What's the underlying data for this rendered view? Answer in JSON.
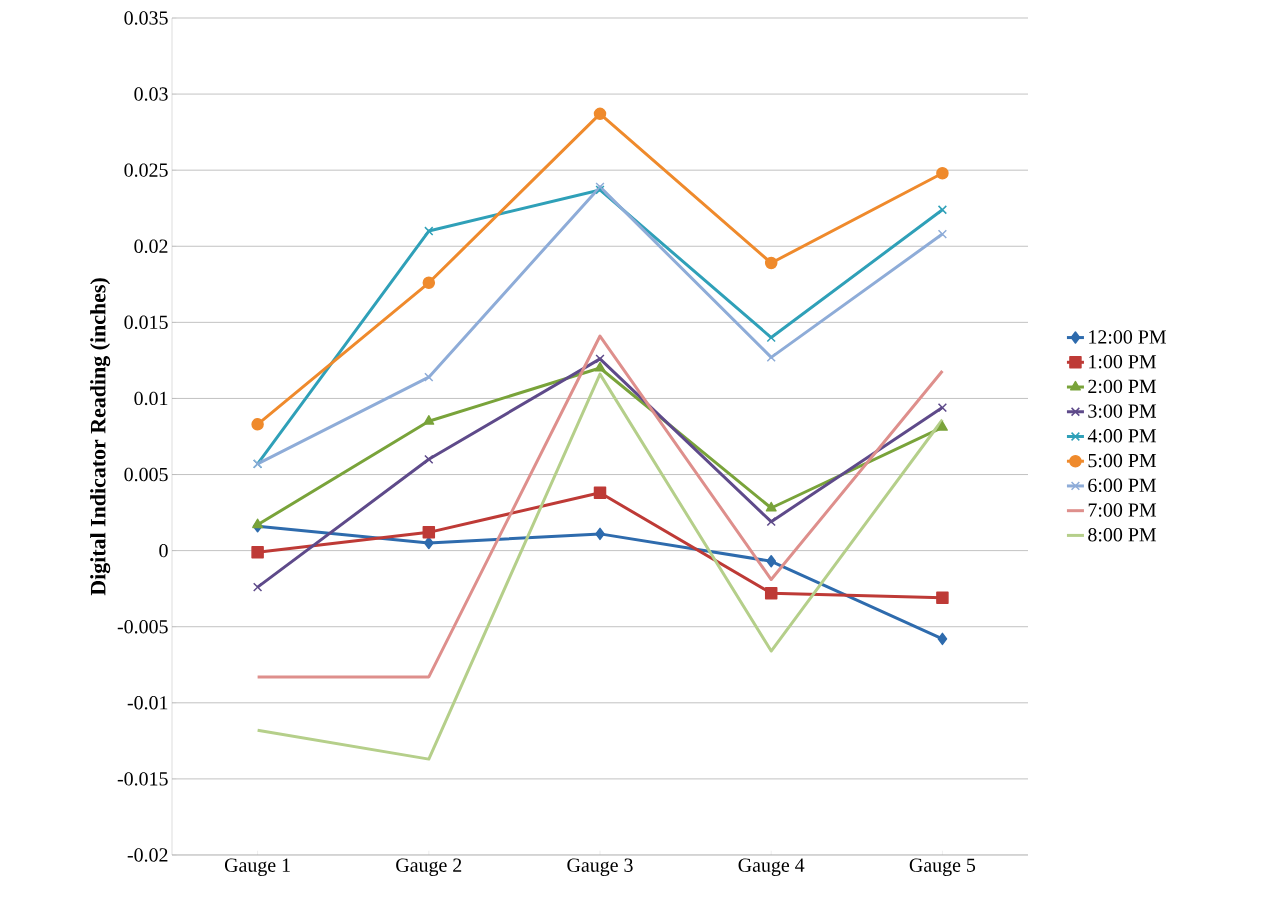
{
  "chart_data": {
    "type": "line",
    "ylabel": "Digital Indicator Reading (inches)",
    "categories": [
      "Gauge 1",
      "Gauge 2",
      "Gauge 3",
      "Gauge 4",
      "Gauge 5"
    ],
    "series": [
      {
        "name": "12:00 PM",
        "color": "#2e6bad",
        "marker": "diamond",
        "values": [
          0.0016,
          0.0005,
          0.0011,
          -0.0007,
          -0.0058
        ]
      },
      {
        "name": "1:00 PM",
        "color": "#be3a36",
        "marker": "square",
        "values": [
          -0.0001,
          0.0012,
          0.0038,
          -0.0028,
          -0.0031
        ]
      },
      {
        "name": "2:00 PM",
        "color": "#79a33a",
        "marker": "triangle",
        "values": [
          0.0017,
          0.0085,
          0.012,
          0.0028,
          0.0081
        ]
      },
      {
        "name": "3:00 PM",
        "color": "#5e4a8a",
        "marker": "cross",
        "values": [
          -0.0024,
          0.006,
          0.0126,
          0.0019,
          0.0094
        ]
      },
      {
        "name": "4:00 PM",
        "color": "#2fa0b8",
        "marker": "cross",
        "values": [
          0.0057,
          0.021,
          0.0237,
          0.014,
          0.0224
        ]
      },
      {
        "name": "5:00 PM",
        "color": "#ef8a2c",
        "marker": "circle",
        "values": [
          0.0083,
          0.0176,
          0.0287,
          0.0189,
          0.0248
        ]
      },
      {
        "name": "6:00 PM",
        "color": "#8eacd8",
        "marker": "cross",
        "values": [
          0.0057,
          0.0114,
          0.0239,
          0.0127,
          0.0208
        ]
      },
      {
        "name": "7:00 PM",
        "color": "#de8f8c",
        "marker": "none",
        "values": [
          -0.0083,
          -0.0083,
          0.0141,
          -0.0019,
          0.0118
        ]
      },
      {
        "name": "8:00 PM",
        "color": "#b5cf8a",
        "marker": "none",
        "values": [
          -0.0118,
          -0.0137,
          0.0116,
          -0.0066,
          0.0086
        ]
      }
    ],
    "ylim": [
      -0.02,
      0.035
    ],
    "yticks": [
      -0.02,
      -0.015,
      -0.01,
      -0.005,
      0,
      0.005,
      0.01,
      0.015,
      0.02,
      0.025,
      0.03,
      0.035
    ],
    "grid": "y",
    "legend": "right"
  }
}
